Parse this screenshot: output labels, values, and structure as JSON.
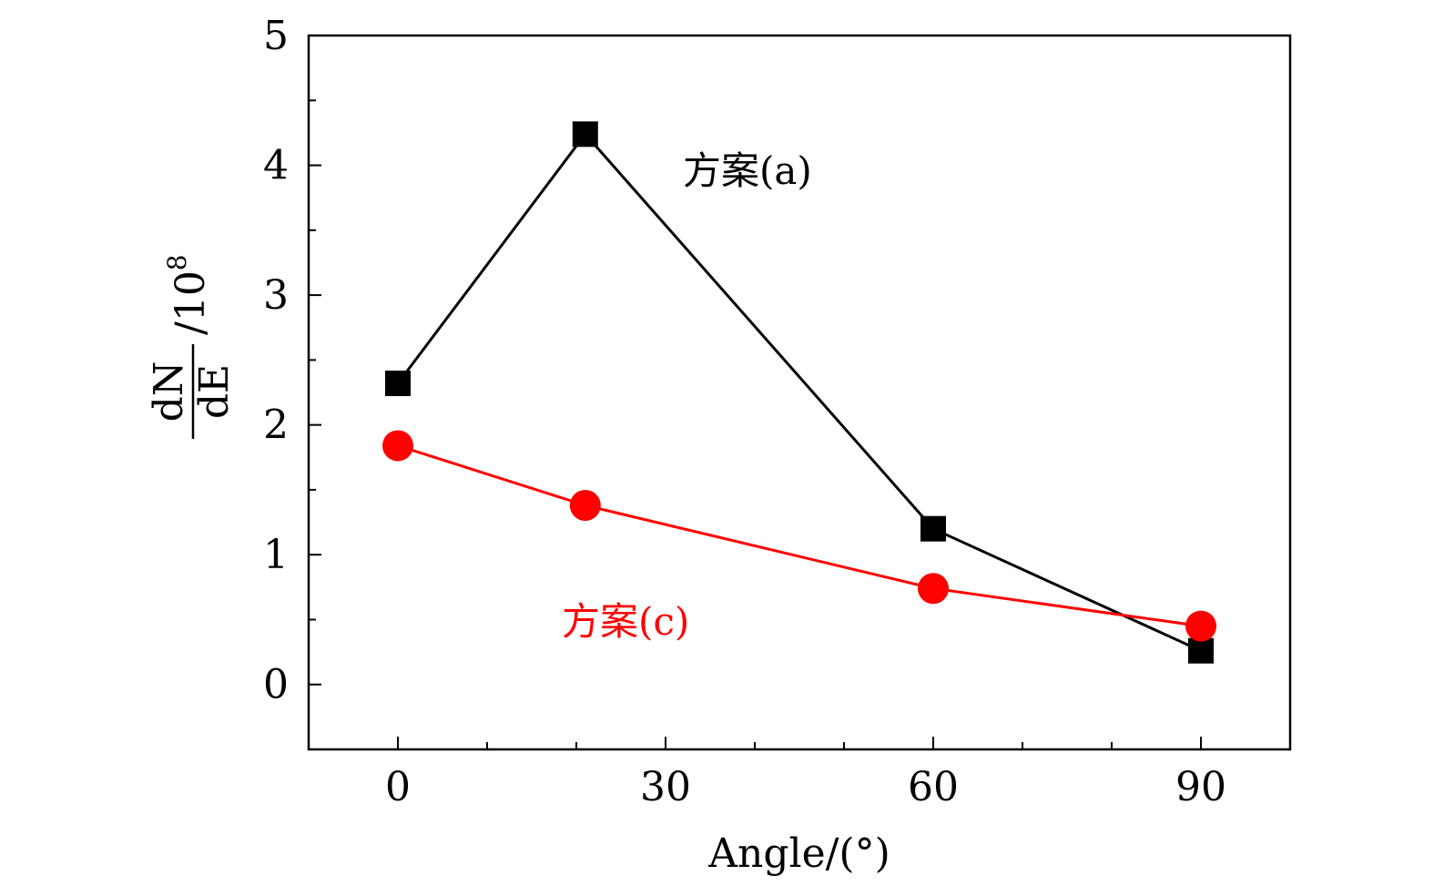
{
  "chart_data": {
    "type": "line",
    "xlabel": "Angle/(°)",
    "ylabel": {
      "numerator": "dN",
      "denominator": "dE",
      "scale": "/10",
      "scale_exponent": "8"
    },
    "xlim": [
      -10,
      100
    ],
    "ylim": [
      -0.5,
      5
    ],
    "x_ticks": [
      0,
      30,
      60,
      90
    ],
    "x_tick_labels": [
      "0",
      "30",
      "60",
      "90"
    ],
    "y_ticks": [
      0,
      1,
      2,
      3,
      4,
      5
    ],
    "y_tick_labels": [
      "0",
      "1",
      "2",
      "3",
      "4",
      "5"
    ],
    "grid": false,
    "series": [
      {
        "name": "方案(a)",
        "color": "#000000",
        "marker": "square",
        "x": [
          0,
          21,
          60,
          90
        ],
        "y": [
          2.32,
          4.24,
          1.2,
          0.26
        ]
      },
      {
        "name": "方案(c)",
        "color": "#ff0000",
        "marker": "circle",
        "x": [
          0,
          21,
          60,
          90
        ],
        "y": [
          1.84,
          1.38,
          0.74,
          0.45
        ]
      }
    ]
  }
}
